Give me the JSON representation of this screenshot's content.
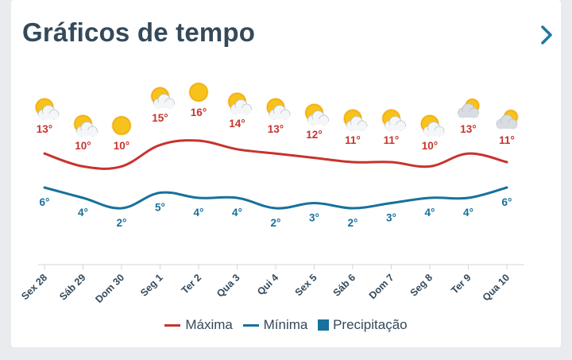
{
  "header": {
    "title": "Gráficos de tempo",
    "next_icon": "chevron-right-icon"
  },
  "chart_data": {
    "type": "line",
    "categories": [
      "Sex 28",
      "Sáb 29",
      "Dom 30",
      "Seg 1",
      "Ter 2",
      "Qua 3",
      "Qui 4",
      "Sex 5",
      "Sáb 6",
      "Dom 7",
      "Seg 8",
      "Ter 9",
      "Qua 10"
    ],
    "series": [
      {
        "name": "Máxima",
        "values": [
          13,
          10,
          10,
          15,
          16,
          14,
          13,
          12,
          11,
          11,
          10,
          13,
          11
        ],
        "labels": [
          "13°",
          "10°",
          "10°",
          "15°",
          "16°",
          "14°",
          "13°",
          "12°",
          "11°",
          "11°",
          "10°",
          "13°",
          "11°"
        ],
        "color": "#c8332e"
      },
      {
        "name": "Mínima",
        "values": [
          6,
          4,
          2,
          5,
          4,
          4,
          2,
          3,
          2,
          3,
          4,
          4,
          6
        ],
        "labels": [
          "6°",
          "4°",
          "2°",
          "5°",
          "4°",
          "4°",
          "2°",
          "3°",
          "2°",
          "3°",
          "4°",
          "4°",
          "6°"
        ],
        "color": "#17719b"
      },
      {
        "name": "Precipitação",
        "values": [
          0,
          0,
          0,
          0,
          0,
          0,
          0,
          0,
          0,
          0,
          0,
          0,
          0
        ],
        "color": "#17719b"
      }
    ],
    "icons": [
      "partly-sunny-icon",
      "partly-sunny-icon",
      "sunny-icon",
      "partly-sunny-icon",
      "sunny-icon",
      "partly-sunny-icon",
      "partly-sunny-icon",
      "partly-sunny-icon",
      "partly-sunny-icon",
      "partly-sunny-icon",
      "partly-sunny-icon",
      "mostly-cloudy-icon",
      "mostly-cloudy-icon"
    ],
    "legend_position": "bottom-center",
    "grid": false
  }
}
